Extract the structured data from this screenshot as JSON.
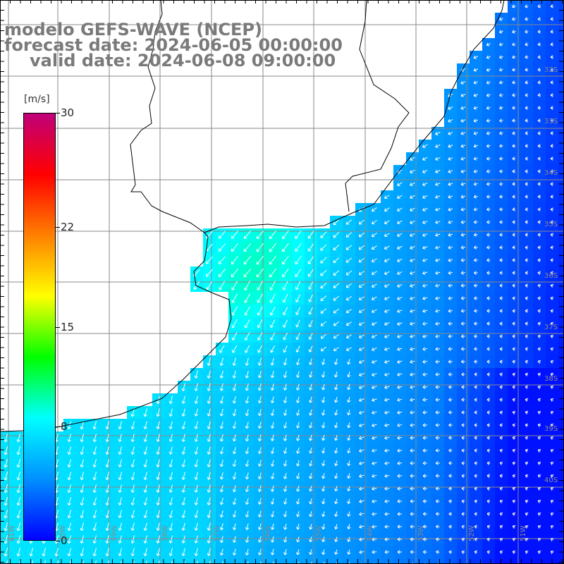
{
  "title": {
    "line1": "modelo GEFS-WAVE (NCEP)",
    "line2": "forecast date: 2024-06-05 00:00:00",
    "line3": "valid date: 2024-06-08 09:00:00"
  },
  "colorbar": {
    "unit": "[m/s]",
    "min": 0,
    "max": 30,
    "tick_labels": [
      "30",
      "22",
      "15",
      "8",
      "0"
    ],
    "tick_values": [
      30,
      22,
      15,
      8,
      0
    ],
    "colors": [
      "#0000ff",
      "#0090ff",
      "#00ffff",
      "#00ff00",
      "#ffff00",
      "#ff8000",
      "#ff0000",
      "#c0007a"
    ]
  },
  "map": {
    "variable": "wind speed and direction",
    "lat_labels": [
      "32S",
      "33S",
      "34S",
      "35S",
      "36S",
      "37S",
      "38S",
      "39S",
      "40S"
    ],
    "lon_labels": [
      "61W",
      "60W",
      "59W",
      "58W",
      "57W",
      "56W",
      "55W",
      "54W",
      "53W",
      "52W",
      "51W"
    ],
    "land_color": "#ffffff",
    "grid_color": "#888888",
    "coast_color": "#000000"
  }
}
